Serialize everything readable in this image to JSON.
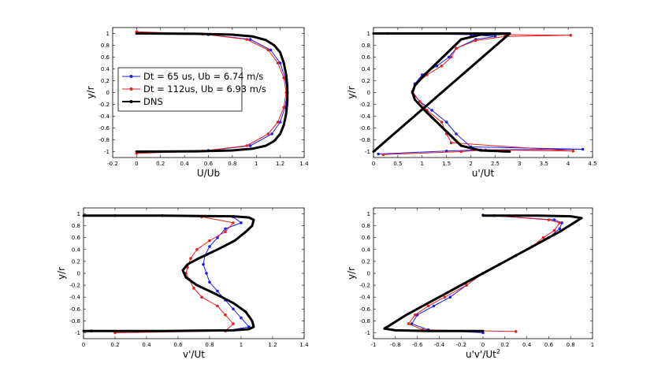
{
  "colors": {
    "blue": "#1f1fe6",
    "red": "#e61f1f",
    "black": "#000000"
  },
  "legend": [
    {
      "label": "Dt = 65 us, Ub = 6.74 m/s",
      "color": "#1f1fe6"
    },
    {
      "label": "Dt = 112us, Ub = 6.93 m/s",
      "color": "#e61f1f"
    },
    {
      "label": "DNS",
      "color": "#000000"
    }
  ],
  "chart_data": [
    {
      "type": "line",
      "id": "mean-velocity",
      "xlabel": "U/Ub",
      "ylabel": "y/r",
      "xlim": [
        -0.2,
        1.4
      ],
      "ylim": [
        -1.1,
        1.1
      ],
      "xticks": [
        -0.2,
        0,
        0.2,
        0.4,
        0.6,
        0.8,
        1,
        1.2,
        1.4
      ],
      "xtick_labels": [
        "-0.2",
        "0",
        "0.2",
        "0.4",
        "0.6",
        "0.8",
        "1",
        "1.2",
        "1.4"
      ],
      "yticks": [
        -1,
        -0.8,
        -0.6,
        -0.4,
        -0.2,
        0,
        0.2,
        0.4,
        0.6,
        0.8,
        1
      ],
      "ytick_labels": [
        "-1",
        "-0.8",
        "-0.6",
        "-0.4",
        "-0.2",
        "0",
        "0.2",
        "0.4",
        "0.6",
        "0.8",
        "1"
      ],
      "legend_position": "middle-left",
      "series": [
        {
          "name": "Dt = 65 us, Ub = 6.74 m/s",
          "x": [
            0,
            0.6,
            0.95,
            1.13,
            1.2,
            1.24,
            1.26,
            1.24,
            1.2,
            1.12,
            0.95,
            0.6,
            0
          ],
          "y": [
            -1,
            -0.98,
            -0.9,
            -0.7,
            -0.5,
            -0.25,
            0,
            0.25,
            0.5,
            0.72,
            0.9,
            0.98,
            1
          ]
        },
        {
          "name": "Dt = 112us, Ub = 6.93 m/s",
          "x": [
            0,
            0.55,
            0.92,
            1.1,
            1.18,
            1.23,
            1.25,
            1.23,
            1.18,
            1.1,
            0.92,
            0.55,
            0
          ],
          "y": [
            -1.03,
            -0.99,
            -0.9,
            -0.7,
            -0.5,
            -0.25,
            0,
            0.25,
            0.5,
            0.72,
            0.9,
            0.99,
            1.03
          ]
        },
        {
          "name": "DNS",
          "x": [
            0,
            0.5,
            0.8,
            0.97,
            1.08,
            1.15,
            1.2,
            1.23,
            1.25,
            1.26,
            1.26,
            1.25,
            1.23,
            1.2,
            1.15,
            1.08,
            0.97,
            0.8,
            0.5,
            0
          ],
          "y": [
            -1,
            -0.995,
            -0.98,
            -0.95,
            -0.9,
            -0.82,
            -0.7,
            -0.55,
            -0.35,
            -0.15,
            0.1,
            0.3,
            0.5,
            0.68,
            0.8,
            0.89,
            0.95,
            0.98,
            0.995,
            1
          ]
        }
      ]
    },
    {
      "type": "line",
      "id": "axial-rms",
      "xlabel": "u'/Ut",
      "ylabel": "y/r",
      "xlim": [
        0,
        4.5
      ],
      "ylim": [
        -1.1,
        1.1
      ],
      "xticks": [
        0,
        0.5,
        1,
        1.5,
        2,
        2.5,
        3,
        3.5,
        4,
        4.5
      ],
      "xtick_labels": [
        "0",
        "0.5",
        "1",
        "1.5",
        "2",
        "2.5",
        "3",
        "3.5",
        "4",
        "4.5"
      ],
      "yticks": [
        -1,
        -0.8,
        -0.6,
        -0.4,
        -0.2,
        0,
        0.2,
        0.4,
        0.6,
        0.8,
        1
      ],
      "ytick_labels": [
        "-1",
        "-0.8",
        "-0.6",
        "-0.4",
        "-0.2",
        "0",
        "0.2",
        "0.4",
        "0.6",
        "0.8",
        "1"
      ],
      "series": [
        {
          "name": "Dt = 65 us, Ub = 6.74 m/s",
          "x": [
            0.1,
            1.5,
            2.2,
            4.3,
            2.0,
            1.7,
            1.5,
            1.2,
            0.95,
            0.8,
            0.85,
            1.0,
            1.3,
            1.55,
            1.7,
            2.1,
            2.5,
            2.0,
            0.3
          ],
          "y": [
            -1.04,
            -0.99,
            -0.97,
            -0.96,
            -0.92,
            -0.7,
            -0.5,
            -0.3,
            -0.15,
            0,
            0.15,
            0.3,
            0.45,
            0.6,
            0.75,
            0.9,
            0.95,
            0.98,
            1.0
          ]
        },
        {
          "name": "Dt = 112us, Ub = 6.93 m/s",
          "x": [
            0.2,
            1.8,
            2.3,
            4.1,
            1.6,
            1.5,
            1.4,
            1.1,
            0.95,
            0.8,
            0.88,
            1.1,
            1.4,
            1.6,
            1.7,
            2.1,
            2.7,
            4.05,
            0.3
          ],
          "y": [
            -1.05,
            -1.0,
            -0.97,
            -0.99,
            -0.85,
            -0.7,
            -0.5,
            -0.3,
            -0.15,
            0.02,
            0.15,
            0.3,
            0.45,
            0.6,
            0.75,
            0.88,
            0.95,
            0.97,
            1.0
          ]
        },
        {
          "name": "DNS",
          "x": [
            2.8,
            2.2,
            1.8,
            1.55,
            1.3,
            1.05,
            0.85,
            0.8,
            0.85,
            1.05,
            1.3,
            1.55,
            1.8,
            2.2,
            2.8,
            0,
            2.8,
            0,
            0,
            0
          ],
          "y": [
            -1.0,
            -0.98,
            -0.9,
            -0.7,
            -0.5,
            -0.3,
            -0.12,
            0,
            0.12,
            0.3,
            0.5,
            0.7,
            0.9,
            0.98,
            1.0,
            1.0,
            1.0,
            -1.0,
            -1.0,
            -1.0
          ]
        }
      ]
    },
    {
      "type": "line",
      "id": "radial-rms",
      "xlabel": "v'/Ut",
      "ylabel": "y/r",
      "xlim": [
        0,
        1.4
      ],
      "ylim": [
        -1.1,
        1.1
      ],
      "xticks": [
        0,
        0.2,
        0.4,
        0.6,
        0.8,
        1,
        1.2,
        1.4
      ],
      "xtick_labels": [
        "0",
        "0.2",
        "0.4",
        "0.6",
        "0.8",
        "1",
        "1.2",
        "1.4"
      ],
      "yticks": [
        -1,
        -0.8,
        -0.6,
        -0.4,
        -0.2,
        0,
        0.2,
        0.4,
        0.6,
        0.8,
        1
      ],
      "ytick_labels": [
        "-1",
        "-0.8",
        "-0.6",
        "-0.4",
        "-0.2",
        "0",
        "0.2",
        "0.4",
        "0.6",
        "0.8",
        "1"
      ],
      "series": [
        {
          "name": "Dt = 65 us, Ub = 6.74 m/s",
          "x": [
            0.05,
            0.9,
            1.05,
            1.0,
            0.95,
            0.9,
            0.85,
            0.8,
            0.78,
            0.76,
            0.77,
            0.8,
            0.85,
            0.9,
            1.0,
            0.95,
            0.5
          ],
          "y": [
            -0.97,
            -0.97,
            -0.9,
            -0.75,
            -0.6,
            -0.45,
            -0.3,
            -0.15,
            0,
            0.15,
            0.3,
            0.45,
            0.6,
            0.75,
            0.85,
            0.95,
            0.97
          ]
        },
        {
          "name": "Dt = 112us, Ub = 6.93 m/s",
          "x": [
            0.2,
            0.9,
            0.95,
            0.9,
            0.85,
            0.75,
            0.7,
            0.67,
            0.65,
            0.66,
            0.68,
            0.72,
            0.8,
            0.9,
            0.95,
            0.75,
            0.2
          ],
          "y": [
            -1.0,
            -0.97,
            -0.85,
            -0.7,
            -0.55,
            -0.4,
            -0.25,
            -0.1,
            0,
            0.1,
            0.25,
            0.4,
            0.55,
            0.7,
            0.85,
            0.95,
            0.97
          ]
        },
        {
          "name": "DNS",
          "x": [
            0,
            0.5,
            0.95,
            1.05,
            1.08,
            1.07,
            1.03,
            0.95,
            0.84,
            0.72,
            0.65,
            0.63,
            0.66,
            0.73,
            0.85,
            0.96,
            1.03,
            1.07,
            1.08,
            1.05,
            0.95,
            0.5,
            0
          ],
          "y": [
            -0.97,
            -0.97,
            -0.96,
            -0.94,
            -0.9,
            -0.8,
            -0.65,
            -0.5,
            -0.35,
            -0.2,
            -0.07,
            0.05,
            0.15,
            0.25,
            0.4,
            0.55,
            0.7,
            0.8,
            0.9,
            0.94,
            0.96,
            0.97,
            0.97
          ]
        }
      ]
    },
    {
      "type": "line",
      "id": "reynolds-stress",
      "xlabel": "u'v'/Ut",
      "xlabel_sup": "2",
      "ylabel": "y/r",
      "xlim": [
        -1,
        1
      ],
      "ylim": [
        -1.1,
        1.1
      ],
      "xticks": [
        -1,
        -0.8,
        -0.6,
        -0.4,
        -0.2,
        0,
        0.2,
        0.4,
        0.6,
        0.8,
        1
      ],
      "xtick_labels": [
        "-1",
        "-0.8",
        "-0.6",
        "-0.4",
        "-0.2",
        "0",
        "0.2",
        "0.4",
        "0.6",
        "0.8",
        "1"
      ],
      "yticks": [
        -1,
        -0.8,
        -0.6,
        -0.4,
        -0.2,
        0,
        0.2,
        0.4,
        0.6,
        0.8,
        1
      ],
      "ytick_labels": [
        "-1",
        "-0.8",
        "-0.6",
        "-0.4",
        "-0.2",
        "0",
        "0.2",
        "0.4",
        "0.6",
        "0.8",
        "1"
      ],
      "series": [
        {
          "name": "Dt = 65 us, Ub = 6.74 m/s",
          "x": [
            0,
            -0.5,
            -0.65,
            -0.6,
            -0.45,
            -0.3,
            -0.15,
            0,
            0.15,
            0.3,
            0.45,
            0.6,
            0.7,
            0.72,
            0.65,
            0
          ],
          "y": [
            -1.0,
            -0.95,
            -0.85,
            -0.7,
            -0.55,
            -0.4,
            -0.2,
            0,
            0.15,
            0.3,
            0.45,
            0.6,
            0.75,
            0.85,
            0.9,
            0.98
          ]
        },
        {
          "name": "Dt = 112us, Ub = 6.93 m/s",
          "x": [
            0.3,
            -0.55,
            -0.68,
            -0.62,
            -0.5,
            -0.35,
            -0.15,
            0,
            0.15,
            0.3,
            0.45,
            0.55,
            0.65,
            0.7,
            0.6,
            0.1
          ],
          "y": [
            -0.98,
            -0.95,
            -0.85,
            -0.7,
            -0.55,
            -0.4,
            -0.2,
            0,
            0.15,
            0.3,
            0.45,
            0.6,
            0.72,
            0.85,
            0.9,
            0.97
          ]
        },
        {
          "name": "DNS",
          "x": [
            0,
            -0.5,
            -0.8,
            -0.9,
            -0.7,
            -0.5,
            -0.3,
            -0.1,
            0,
            0.1,
            0.3,
            0.5,
            0.7,
            0.9,
            0.8,
            0.5,
            0
          ],
          "y": [
            -0.97,
            -0.97,
            -0.96,
            -0.93,
            -0.7,
            -0.5,
            -0.3,
            -0.1,
            0,
            0.1,
            0.3,
            0.5,
            0.7,
            0.93,
            0.96,
            0.97,
            0.97
          ]
        }
      ]
    }
  ]
}
